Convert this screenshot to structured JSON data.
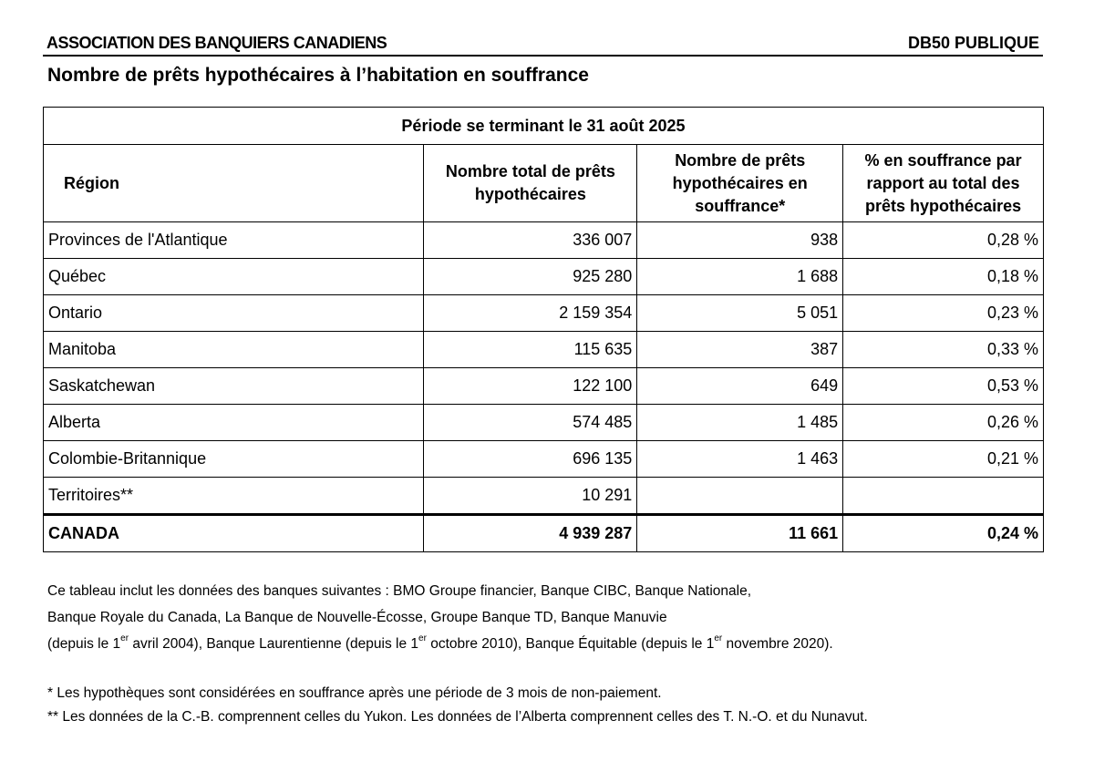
{
  "header": {
    "org": "ASSOCIATION DES BANQUIERS CANADIENS",
    "code": "DB50 PUBLIQUE"
  },
  "title": "Nombre de prêts hypothécaires à l’habitation en souffrance",
  "table": {
    "period": "Période se terminant le 31 août 2025",
    "columns": [
      "Région",
      "Nombre total de prêts hypothécaires",
      "Nombre de prêts hypothécaires en souffrance*",
      "% en souffrance par rapport au total des prêts hypothécaires"
    ],
    "rows": [
      [
        "Provinces de l'Atlantique",
        "336 007",
        "938",
        "0,28 %"
      ],
      [
        "Québec",
        "925 280",
        "1 688",
        "0,18 %"
      ],
      [
        "Ontario",
        "2 159 354",
        "5 051",
        "0,23 %"
      ],
      [
        "Manitoba",
        "115 635",
        "387",
        "0,33 %"
      ],
      [
        "Saskatchewan",
        "122 100",
        "649",
        "0,53 %"
      ],
      [
        "Alberta",
        "574 485",
        "1 485",
        "0,26 %"
      ],
      [
        "Colombie-Britannique",
        "696 135",
        "1 463",
        "0,21 %"
      ],
      [
        "Territoires**",
        "10 291",
        "",
        ""
      ]
    ],
    "total": [
      "CANADA",
      "4 939 287",
      "11 661",
      "0,24 %"
    ]
  },
  "notes": {
    "line1": "Ce tableau inclut les données des banques suivantes : BMO Groupe financier, Banque CIBC, Banque Nationale,",
    "line2": "Banque Royale du Canada, La Banque de Nouvelle-Écosse, Groupe Banque TD, Banque Manuvie",
    "line3_parts": [
      "(depuis le 1",
      "er",
      " avril 2004), Banque Laurentienne (depuis le 1",
      "er",
      " octobre 2010), Banque Équitable (depuis le 1",
      "er",
      " novembre 2020)."
    ]
  },
  "footnotes": [
    "*  Les hypothèques sont considérées en souffrance après une période de 3 mois de non-paiement.",
    "** Les données de la C.-B. comprennent celles du Yukon. Les données de l’Alberta comprennent celles des T. N.-O. et du Nunavut."
  ]
}
